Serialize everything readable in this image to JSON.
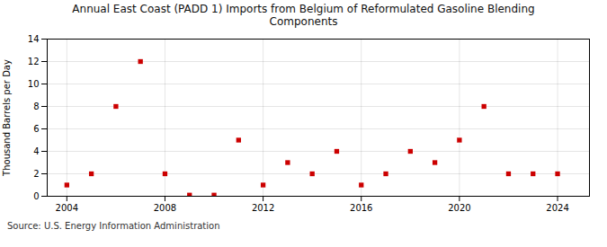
{
  "chart_data": {
    "type": "scatter",
    "title": "Annual East Coast (PADD 1) Imports from Belgium of Reformulated Gasoline Blending\nComponents",
    "ylabel": "Thousand Barrels per Day",
    "source": "Source: U.S. Energy Information Administration",
    "x": [
      2004,
      2005,
      2006,
      2007,
      2008,
      2009,
      2010,
      2011,
      2012,
      2013,
      2014,
      2015,
      2016,
      2017,
      2018,
      2019,
      2020,
      2021,
      2022,
      2023,
      2024
    ],
    "values": [
      1,
      2,
      8,
      12,
      2,
      0.1,
      0.1,
      5,
      1,
      3,
      2,
      4,
      1,
      2,
      4,
      3,
      5,
      8,
      2,
      2,
      2
    ],
    "color": "#cc0000",
    "marker": "square",
    "xlim": [
      2003.2,
      2025.3
    ],
    "ylim": [
      0,
      14
    ],
    "xticks": [
      2004,
      2008,
      2012,
      2016,
      2020,
      2024
    ],
    "yticks": [
      0,
      2,
      4,
      6,
      8,
      10,
      12,
      14
    ],
    "grid": true
  }
}
